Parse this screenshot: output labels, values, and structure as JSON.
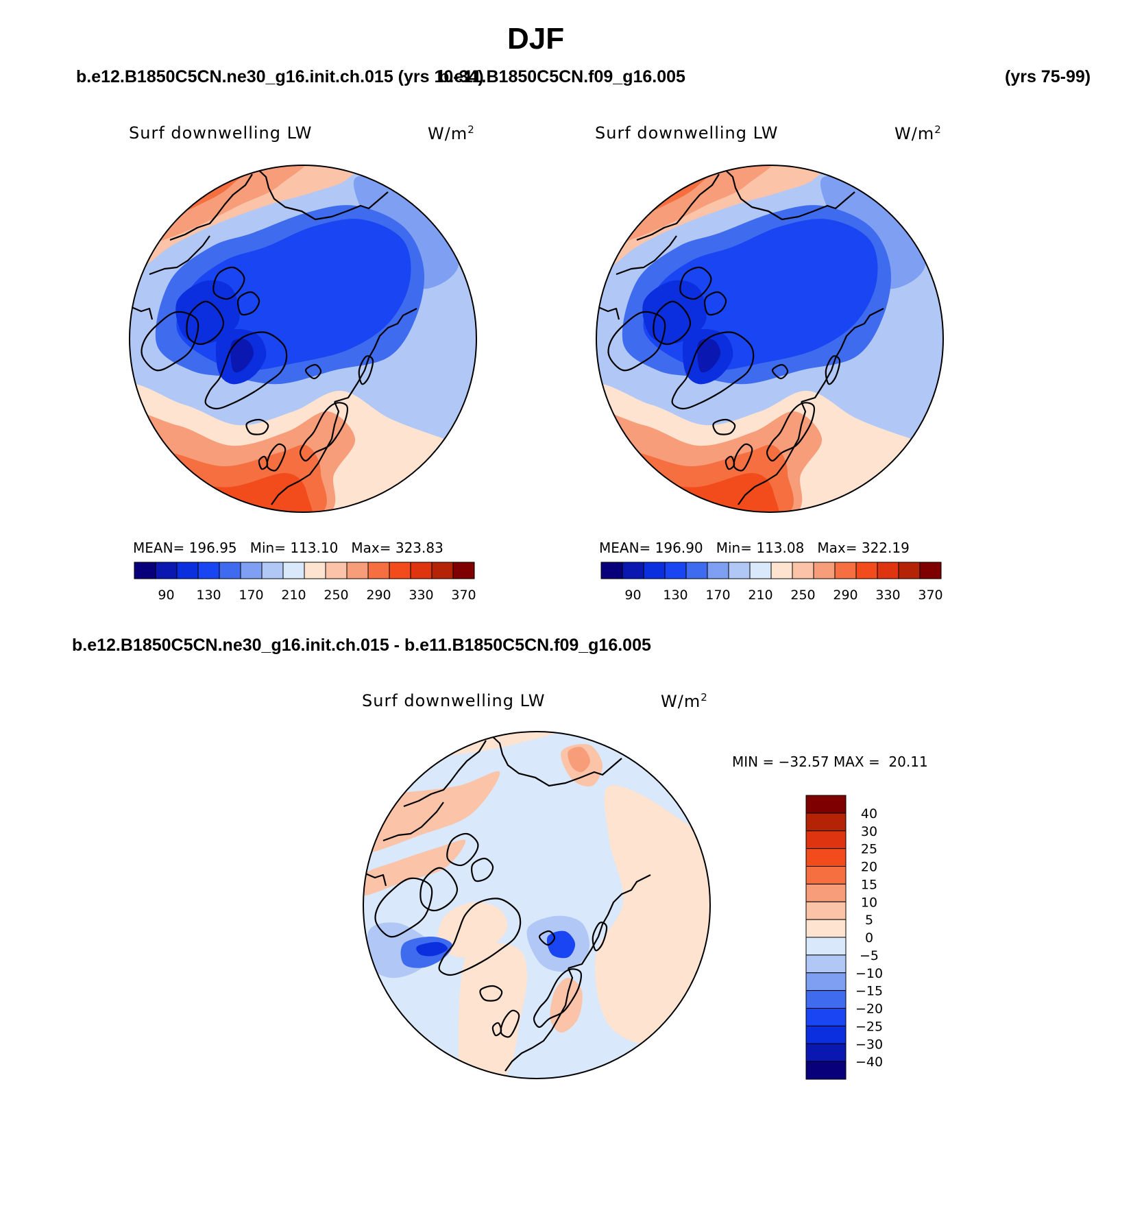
{
  "figure": {
    "title": "DJF",
    "case_left": "b.e12.B1850C5CN.ne30_g16.init.ch.015 (yrs 10-34)",
    "case_right": "b.e11.B1850C5CN.f09_g16.005",
    "case_right_years": "(yrs 75-99)",
    "diff_heading": "b.e12.B1850C5CN.ne30_g16.init.ch.015 - b.e11.B1850C5CN.f09_g16.005"
  },
  "colors": {
    "sequential": [
      "#08007a",
      "#0a17b0",
      "#0b2ede",
      "#1946f2",
      "#3f6bee",
      "#7e9ff2",
      "#b1c8f7",
      "#d9e8fb",
      "#fde3d0",
      "#fbc3a7",
      "#f79d7a",
      "#f56f40",
      "#f34c1c",
      "#de3510",
      "#b52307",
      "#7f0000"
    ],
    "diverging": [
      "#08007a",
      "#0a17b0",
      "#0b2ede",
      "#1946f2",
      "#3f6bee",
      "#7e9ff2",
      "#b1c8f7",
      "#d9e8fb",
      "#fde3d0",
      "#fbc3a7",
      "#f79d7a",
      "#f56f40",
      "#f34c1c",
      "#de3510",
      "#b52307",
      "#7f0000"
    ],
    "coast": "#000000"
  },
  "chart_data": [
    {
      "type": "heatmap",
      "title": "Surf downwelling LW",
      "units_base": "W/m",
      "units_exp": "2",
      "projection": "north polar stereographic",
      "stats": {
        "mean_label": "MEAN=",
        "mean": "196.95",
        "min_label": "Min=",
        "min": "113.10",
        "max_label": "Max=",
        "max": "323.83"
      },
      "colorbar": {
        "tick_labels": [
          "90",
          "130",
          "170",
          "210",
          "250",
          "290",
          "330",
          "370"
        ]
      },
      "levels": [
        90,
        110,
        130,
        150,
        170,
        190,
        210,
        230,
        250,
        270,
        290,
        310,
        330,
        350,
        370
      ]
    },
    {
      "type": "heatmap",
      "title": "Surf downwelling LW",
      "units_base": "W/m",
      "units_exp": "2",
      "projection": "north polar stereographic",
      "stats": {
        "mean_label": "MEAN=",
        "mean": "196.90",
        "min_label": "Min=",
        "min": "113.08",
        "max_label": "Max=",
        "max": "322.19"
      },
      "colorbar": {
        "tick_labels": [
          "90",
          "130",
          "170",
          "210",
          "250",
          "290",
          "330",
          "370"
        ]
      },
      "levels": [
        90,
        110,
        130,
        150,
        170,
        190,
        210,
        230,
        250,
        270,
        290,
        310,
        330,
        350,
        370
      ]
    },
    {
      "type": "heatmap",
      "title": "Surf downwelling LW",
      "units_base": "W/m",
      "units_exp": "2",
      "projection": "north polar stereographic",
      "stats_text": "MIN = −32.57 MAX =  20.11",
      "colorbar": {
        "tick_labels": [
          "40",
          "30",
          "25",
          "20",
          "15",
          "10",
          "5",
          "0",
          "−5",
          "−10",
          "−15",
          "−20",
          "−25",
          "−30",
          "−40"
        ]
      },
      "levels": [
        -40,
        -30,
        -25,
        -20,
        -15,
        -10,
        -5,
        0,
        5,
        10,
        15,
        20,
        25,
        30,
        40
      ]
    }
  ]
}
